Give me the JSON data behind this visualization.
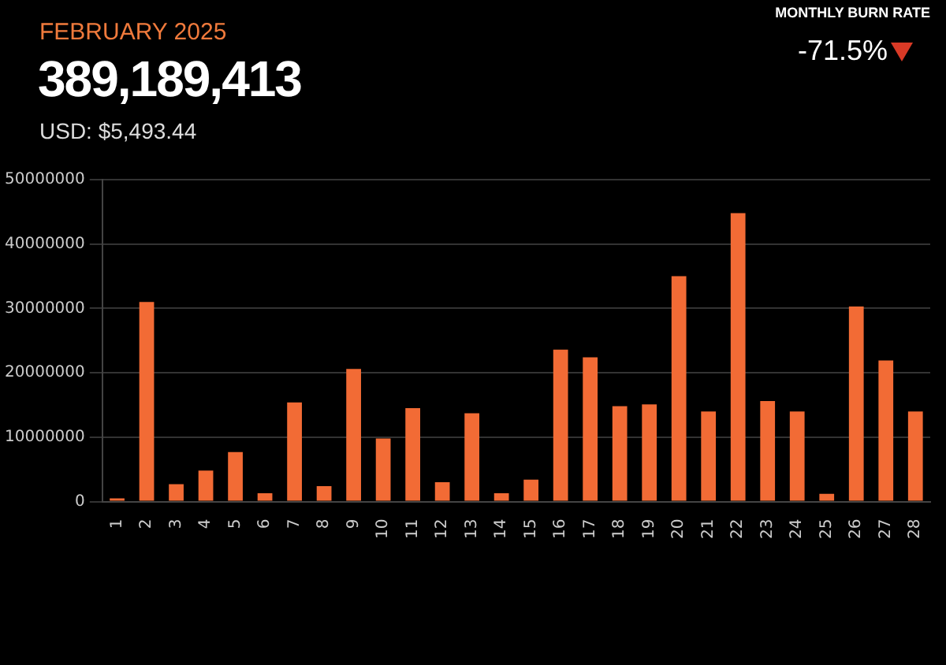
{
  "chart_data": {
    "type": "bar",
    "title": "FEBRUARY 2025",
    "subtitle": "389,189,413",
    "annotations": [
      "USD: $5,493.44",
      "MONTHLY BURN RATE",
      "-71.5%"
    ],
    "categories": [
      "1",
      "2",
      "3",
      "4",
      "5",
      "6",
      "7",
      "8",
      "9",
      "10",
      "11",
      "12",
      "13",
      "14",
      "15",
      "16",
      "17",
      "18",
      "19",
      "20",
      "21",
      "22",
      "23",
      "24",
      "25",
      "26",
      "27",
      "28"
    ],
    "values": [
      500000,
      31000000,
      2700000,
      4800000,
      7700000,
      1300000,
      15400000,
      2400000,
      20600000,
      9800000,
      14500000,
      3000000,
      13700000,
      1300000,
      3400000,
      23600000,
      22400000,
      14800000,
      15100000,
      35000000,
      14000000,
      44800000,
      15600000,
      14000000,
      1200000,
      30300000,
      21900000,
      14000000
    ],
    "color": "#f26b35",
    "ylim": [
      0,
      50000000
    ],
    "yticks": [
      0,
      10000000,
      20000000,
      30000000,
      40000000,
      50000000
    ],
    "grid": "y"
  }
}
